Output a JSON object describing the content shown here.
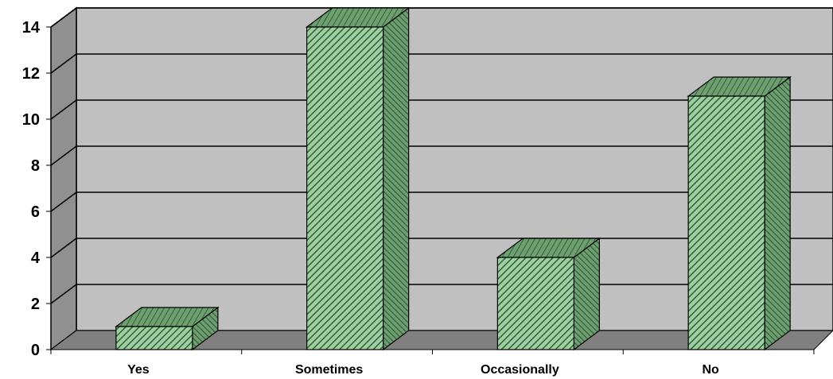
{
  "chart_data": {
    "type": "bar",
    "categories": [
      "Yes",
      "Sometimes",
      "Occasionally",
      "No"
    ],
    "values": [
      1,
      14,
      4,
      11
    ],
    "ylim": [
      0,
      14
    ],
    "yticks": [
      "0",
      "2",
      "4",
      "6",
      "8",
      "10",
      "12",
      "14"
    ],
    "title": "",
    "xlabel": "",
    "ylabel": "",
    "grid": true,
    "legend": "none",
    "three_d": true,
    "colors": {
      "bar_fill": "#9fcf9f",
      "bar_stripe": "#2f5f3f",
      "side_fill": "#6f9f6f",
      "wall": "#c0c0c0",
      "wall_side": "#909090",
      "floor": "#808080"
    }
  }
}
